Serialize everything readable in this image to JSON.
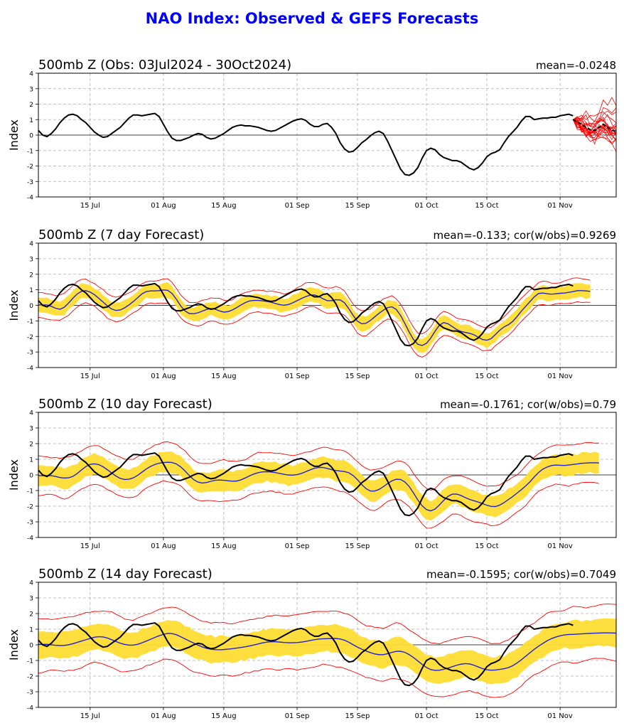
{
  "figure_title": "NAO Index: Observed & GEFS Forecasts",
  "colors": {
    "title": "#0000ff",
    "observed": "#000000",
    "ensemble_mean": "#2222cc",
    "spread_band": "#ffdd33",
    "spread_edges": "#ff0000",
    "members": "#ff0000",
    "grid": "#b0b0b0"
  },
  "chart_data": [
    {
      "type": "line",
      "title": "500mb Z (Obs: 03Jul2024 - 30Oct2024)",
      "stat": "mean=-0.0248",
      "ylabel": "Index",
      "ylim": [
        -4,
        4
      ],
      "yticks": [
        "4",
        "3",
        "2",
        "1",
        "0",
        "-1",
        "-2",
        "-3",
        "-4"
      ],
      "xticks": [
        "15 Jul",
        "01 Aug",
        "15 Aug",
        "01 Sep",
        "15 Sep",
        "01 Oct",
        "15 Oct",
        "01 Nov"
      ],
      "xtick_days": [
        12,
        29,
        43,
        60,
        74,
        90,
        104,
        121
      ],
      "xlim_days": [
        0,
        134
      ],
      "grid": true,
      "x_day_note": "days since 03 Jul 2024",
      "observed": [
        [
          0,
          0.3
        ],
        [
          1,
          0.0
        ],
        [
          2,
          -0.1
        ],
        [
          3,
          0.1
        ],
        [
          4,
          0.4
        ],
        [
          5,
          0.8
        ],
        [
          6,
          1.1
        ],
        [
          7,
          1.3
        ],
        [
          8,
          1.35
        ],
        [
          9,
          1.25
        ],
        [
          10,
          1.0
        ],
        [
          11,
          0.8
        ],
        [
          12,
          0.5
        ],
        [
          13,
          0.2
        ],
        [
          14,
          0.0
        ],
        [
          15,
          -0.15
        ],
        [
          16,
          -0.1
        ],
        [
          17,
          0.1
        ],
        [
          18,
          0.3
        ],
        [
          19,
          0.5
        ],
        [
          20,
          0.8
        ],
        [
          21,
          1.1
        ],
        [
          22,
          1.3
        ],
        [
          23,
          1.3
        ],
        [
          24,
          1.25
        ],
        [
          25,
          1.3
        ],
        [
          26,
          1.35
        ],
        [
          27,
          1.4
        ],
        [
          28,
          1.2
        ],
        [
          29,
          0.7
        ],
        [
          30,
          0.2
        ],
        [
          31,
          -0.2
        ],
        [
          32,
          -0.35
        ],
        [
          33,
          -0.35
        ],
        [
          34,
          -0.25
        ],
        [
          35,
          -0.15
        ],
        [
          36,
          0.0
        ],
        [
          37,
          0.1
        ],
        [
          38,
          0.05
        ],
        [
          39,
          -0.15
        ],
        [
          40,
          -0.25
        ],
        [
          41,
          -0.2
        ],
        [
          42,
          -0.05
        ],
        [
          43,
          0.1
        ],
        [
          44,
          0.3
        ],
        [
          45,
          0.5
        ],
        [
          46,
          0.6
        ],
        [
          47,
          0.65
        ],
        [
          48,
          0.6
        ],
        [
          49,
          0.6
        ],
        [
          50,
          0.55
        ],
        [
          51,
          0.5
        ],
        [
          52,
          0.4
        ],
        [
          53,
          0.3
        ],
        [
          54,
          0.25
        ],
        [
          55,
          0.3
        ],
        [
          56,
          0.45
        ],
        [
          57,
          0.6
        ],
        [
          58,
          0.75
        ],
        [
          59,
          0.9
        ],
        [
          60,
          1.0
        ],
        [
          61,
          1.05
        ],
        [
          62,
          0.95
        ],
        [
          63,
          0.7
        ],
        [
          64,
          0.55
        ],
        [
          65,
          0.55
        ],
        [
          66,
          0.7
        ],
        [
          67,
          0.75
        ],
        [
          68,
          0.5
        ],
        [
          69,
          0.1
        ],
        [
          70,
          -0.5
        ],
        [
          71,
          -0.9
        ],
        [
          72,
          -1.1
        ],
        [
          73,
          -1.05
        ],
        [
          74,
          -0.8
        ],
        [
          75,
          -0.5
        ],
        [
          76,
          -0.3
        ],
        [
          77,
          -0.05
        ],
        [
          78,
          0.15
        ],
        [
          79,
          0.25
        ],
        [
          80,
          0.1
        ],
        [
          81,
          -0.4
        ],
        [
          82,
          -1.0
        ],
        [
          83,
          -1.6
        ],
        [
          84,
          -2.2
        ],
        [
          85,
          -2.55
        ],
        [
          86,
          -2.6
        ],
        [
          87,
          -2.45
        ],
        [
          88,
          -2.1
        ],
        [
          89,
          -1.5
        ],
        [
          90,
          -1.0
        ],
        [
          91,
          -0.85
        ],
        [
          92,
          -0.95
        ],
        [
          93,
          -1.25
        ],
        [
          94,
          -1.45
        ],
        [
          95,
          -1.55
        ],
        [
          96,
          -1.65
        ],
        [
          97,
          -1.65
        ],
        [
          98,
          -1.75
        ],
        [
          99,
          -1.95
        ],
        [
          100,
          -2.15
        ],
        [
          101,
          -2.25
        ],
        [
          102,
          -2.1
        ],
        [
          103,
          -1.8
        ],
        [
          104,
          -1.4
        ],
        [
          105,
          -1.2
        ],
        [
          106,
          -1.1
        ],
        [
          107,
          -0.95
        ],
        [
          108,
          -0.5
        ],
        [
          109,
          -0.1
        ],
        [
          110,
          0.2
        ],
        [
          111,
          0.5
        ],
        [
          112,
          0.9
        ],
        [
          113,
          1.2
        ],
        [
          114,
          1.2
        ],
        [
          115,
          1.0
        ],
        [
          116,
          1.05
        ],
        [
          117,
          1.1
        ],
        [
          118,
          1.1
        ],
        [
          119,
          1.15
        ],
        [
          120,
          1.15
        ],
        [
          121,
          1.25
        ],
        [
          122,
          1.3
        ],
        [
          123,
          1.35
        ],
        [
          124,
          1.25
        ]
      ],
      "members_start": [
        124,
        1.0
      ],
      "member_count": 21,
      "members_end_day": 134,
      "members_mean": [
        [
          124,
          1.0
        ],
        [
          125,
          0.85
        ],
        [
          126,
          0.7
        ],
        [
          127,
          0.5
        ],
        [
          128,
          0.35
        ],
        [
          129,
          0.3
        ],
        [
          130,
          0.5
        ],
        [
          131,
          0.7
        ],
        [
          132,
          0.5
        ],
        [
          133,
          0.3
        ],
        [
          134,
          0.25
        ]
      ]
    },
    {
      "type": "line",
      "title": "500mb Z (7 day Forecast)",
      "stat": "mean=-0.133; cor(w/obs)=0.9269",
      "ylabel": "Index",
      "ylim": [
        -4,
        4
      ],
      "yticks": [
        "4",
        "3",
        "2",
        "1",
        "0",
        "-1",
        "-2",
        "-3",
        "-4"
      ],
      "xticks": [
        "15 Jul",
        "01 Aug",
        "15 Aug",
        "01 Sep",
        "15 Sep",
        "01 Oct",
        "15 Oct",
        "01 Nov"
      ],
      "xtick_days": [
        12,
        29,
        43,
        60,
        74,
        90,
        104,
        121
      ],
      "xlim_days": [
        0,
        134
      ],
      "grid": true,
      "lag_days": 3,
      "mean_offset": -0.25,
      "band_halfwidth": 0.45,
      "edge_halfwidth": 0.75,
      "smoothing": 1,
      "end_day": 128
    },
    {
      "type": "line",
      "title": "500mb Z (10 day Forecast)",
      "stat": "mean=-0.1761; cor(w/obs)=0.79",
      "ylabel": "Index",
      "ylim": [
        -4,
        4
      ],
      "yticks": [
        "4",
        "3",
        "2",
        "1",
        "0",
        "-1",
        "-2",
        "-3",
        "-4"
      ],
      "xticks": [
        "15 Jul",
        "01 Aug",
        "15 Aug",
        "01 Sep",
        "15 Sep",
        "01 Oct",
        "15 Oct",
        "01 Nov"
      ],
      "xtick_days": [
        12,
        29,
        43,
        60,
        74,
        90,
        104,
        121
      ],
      "xlim_days": [
        0,
        134
      ],
      "grid": true,
      "lag_days": 5,
      "mean_offset": -0.3,
      "band_halfwidth": 0.65,
      "edge_halfwidth": 1.25,
      "smoothing": 2,
      "end_day": 130
    },
    {
      "type": "line",
      "title": "500mb Z (14 day Forecast)",
      "stat": "mean=-0.1595; cor(w/obs)=0.7049",
      "ylabel": "Index",
      "ylim": [
        -4,
        4
      ],
      "yticks": [
        "4",
        "3",
        "2",
        "1",
        "0",
        "-1",
        "-2",
        "-3",
        "-4"
      ],
      "xticks": [
        "15 Jul",
        "01 Aug",
        "15 Aug",
        "01 Sep",
        "15 Sep",
        "01 Oct",
        "15 Oct",
        "01 Nov"
      ],
      "xtick_days": [
        12,
        29,
        43,
        60,
        74,
        90,
        104,
        121
      ],
      "xlim_days": [
        0,
        134
      ],
      "grid": true,
      "lag_days": 6,
      "mean_offset": -0.2,
      "band_halfwidth": 0.85,
      "edge_halfwidth": 1.7,
      "smoothing": 4,
      "end_day": 134
    }
  ]
}
